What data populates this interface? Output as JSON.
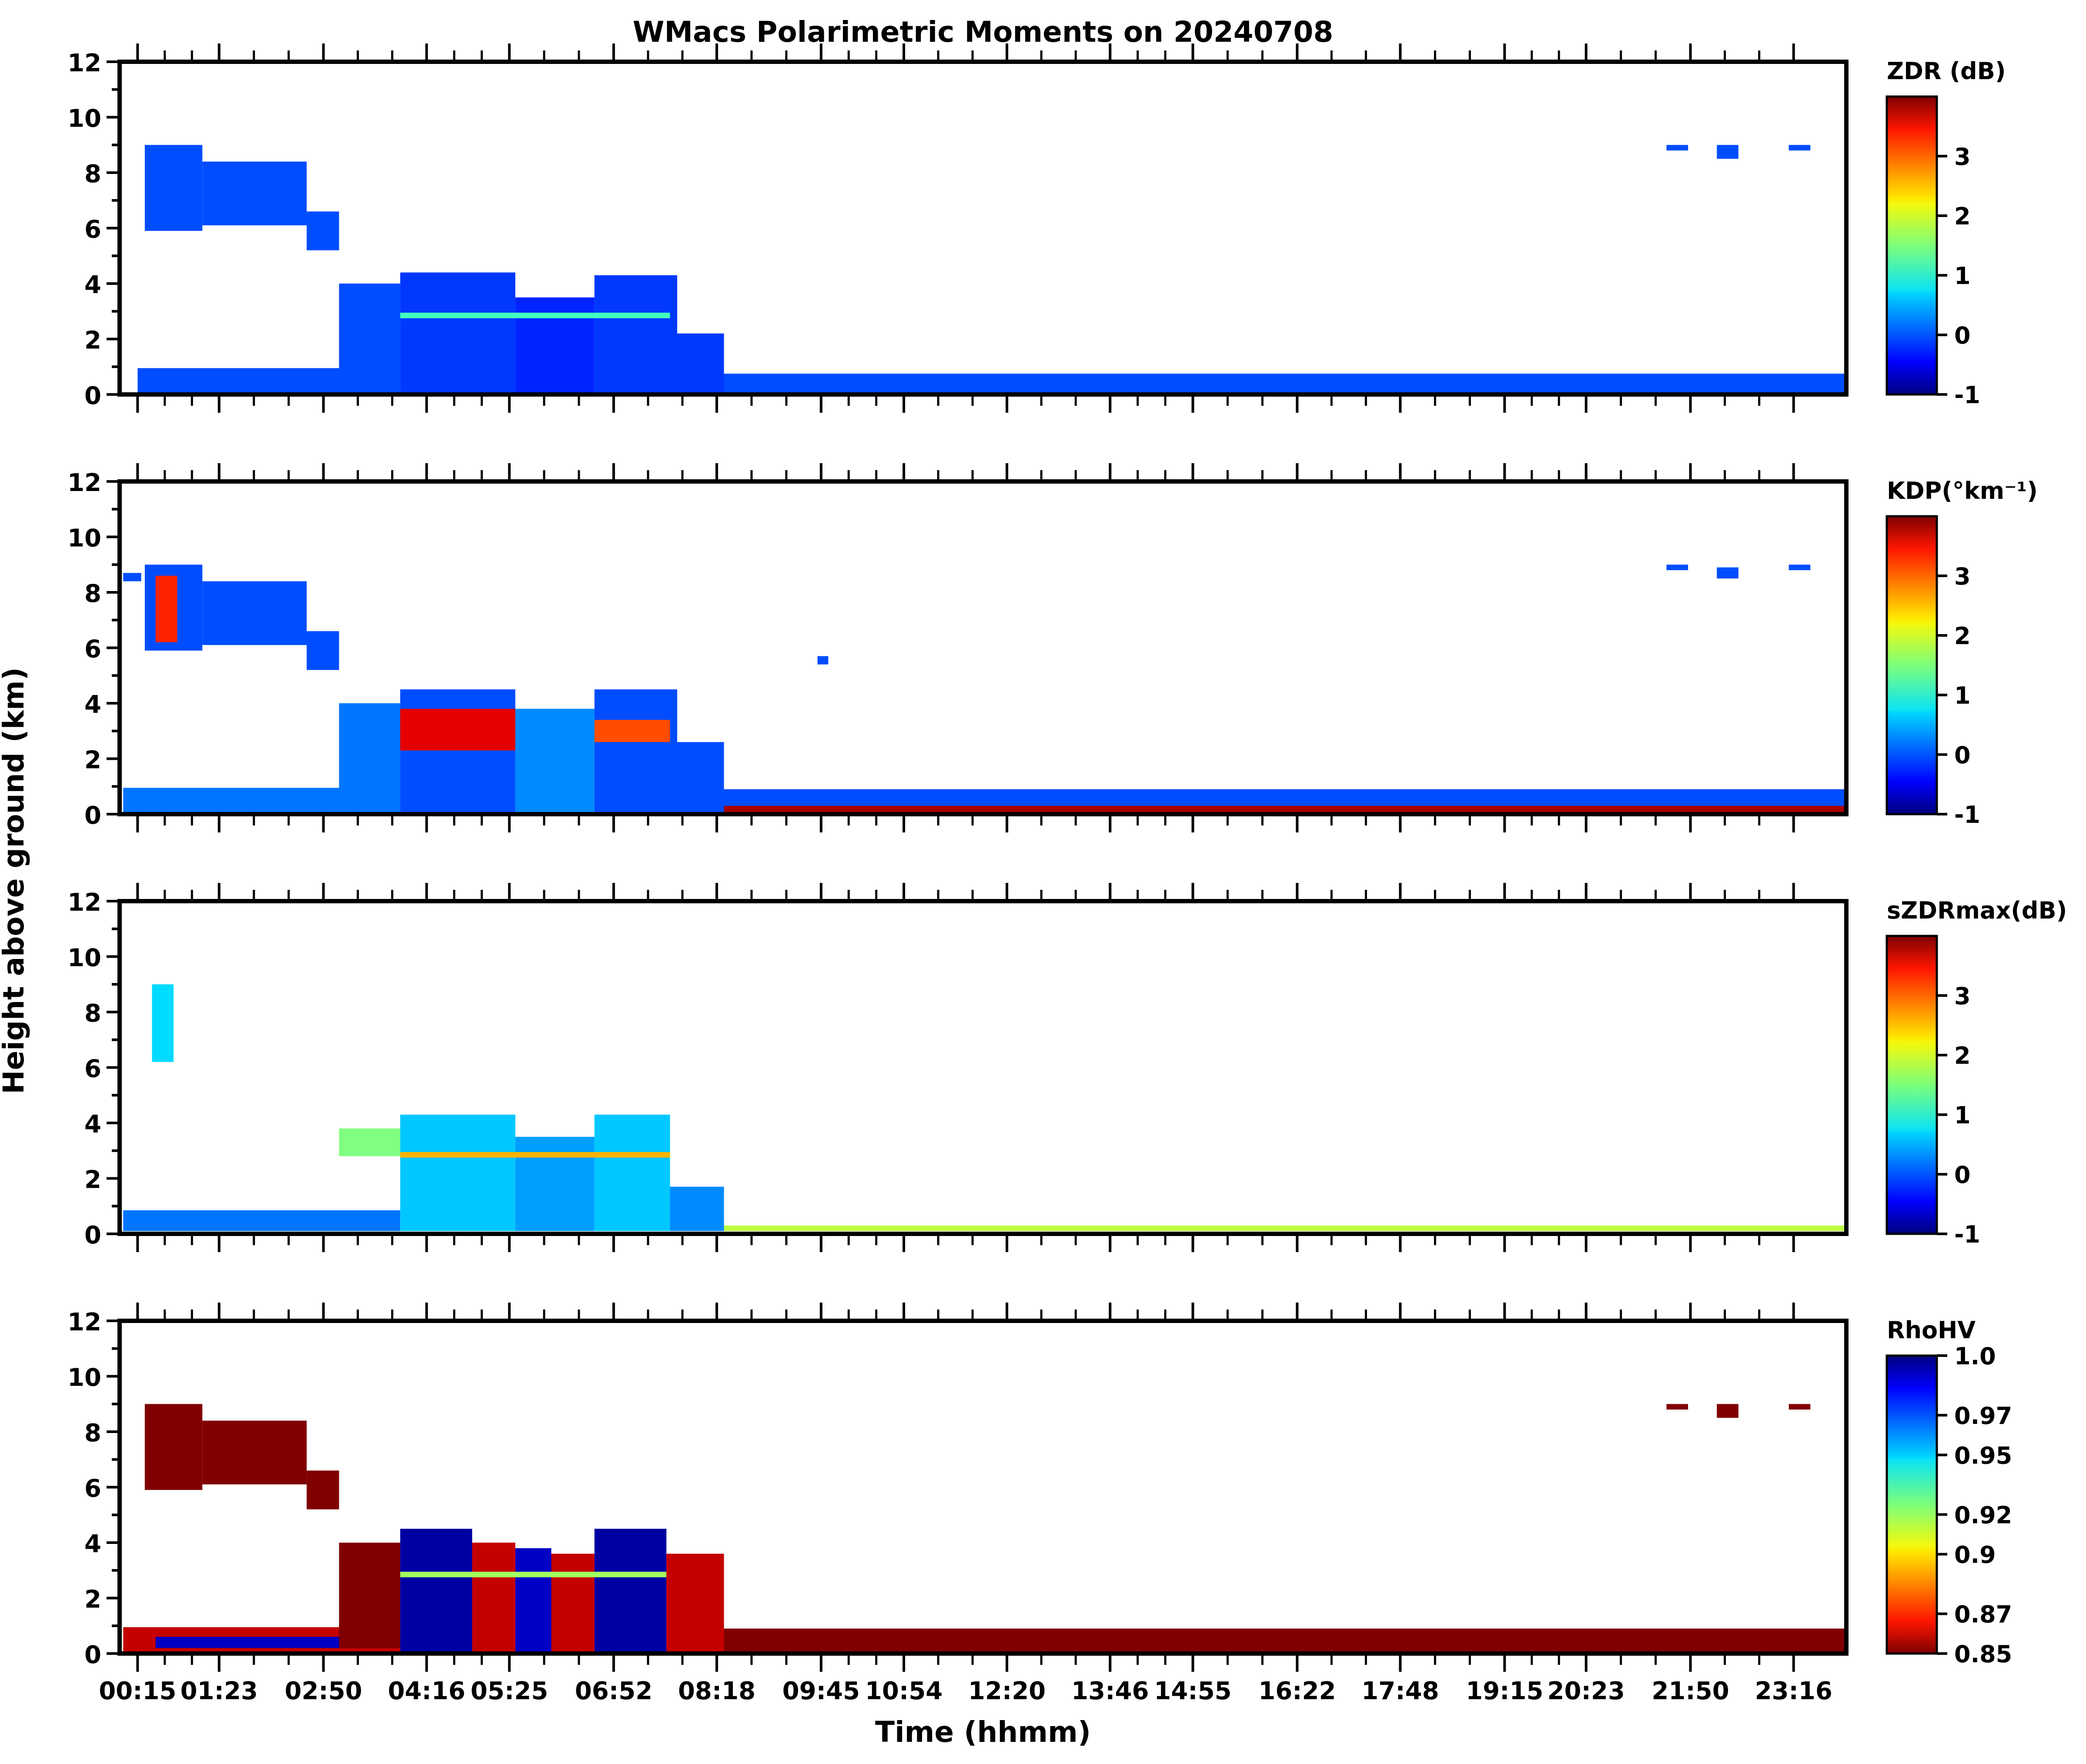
{
  "figure": {
    "title": "WMacs Polarimetric Moments on 20240708",
    "xlabel": "Time (hhmm)",
    "ylabel": "Height above ground (km)"
  },
  "chart_data": [
    {
      "type": "heatmap",
      "name": "ZDR panel",
      "colorbar_label": "ZDR (dB)",
      "colorbar_ticks": [
        "-1",
        "0",
        "1",
        "2",
        "3"
      ],
      "color_range": [
        -1,
        4
      ],
      "colormap": "jet",
      "x_ticks": [
        "00:15",
        "01:23",
        "02:50",
        "04:16",
        "05:25",
        "06:52",
        "08:18",
        "09:45",
        "10:54",
        "12:20",
        "13:46",
        "14:55",
        "16:22",
        "17:48",
        "19:15",
        "20:23",
        "21:50",
        "23:16"
      ],
      "y_ticks": [
        "0",
        "2",
        "4",
        "6",
        "8",
        "10",
        "12"
      ],
      "ylim": [
        0,
        12
      ],
      "regions": [
        {
          "t0": 0.35,
          "t1": 1.15,
          "h0": 5.9,
          "h1": 9.0,
          "value": 0.0
        },
        {
          "t0": 1.15,
          "t1": 2.6,
          "h0": 6.1,
          "h1": 8.4,
          "value": 0.0
        },
        {
          "t0": 2.6,
          "t1": 3.05,
          "h0": 5.2,
          "h1": 6.6,
          "value": 0.0
        },
        {
          "t0": 0.25,
          "t1": 3.9,
          "h0": 0.05,
          "h1": 0.95,
          "value": 0.0
        },
        {
          "t0": 3.05,
          "t1": 3.9,
          "h0": 0.1,
          "h1": 4.0,
          "value": 0.0
        },
        {
          "t0": 3.9,
          "t1": 5.5,
          "h0": 0.05,
          "h1": 4.4,
          "value": -0.1
        },
        {
          "t0": 5.5,
          "t1": 6.6,
          "h0": 0.05,
          "h1": 3.5,
          "value": -0.2
        },
        {
          "t0": 6.6,
          "t1": 7.75,
          "h0": 0.05,
          "h1": 4.3,
          "value": -0.1
        },
        {
          "t0": 7.75,
          "t1": 8.4,
          "h0": 0.05,
          "h1": 2.2,
          "value": -0.1
        },
        {
          "t0": 3.9,
          "t1": 7.65,
          "h0": 2.75,
          "h1": 2.95,
          "value": 1.2
        },
        {
          "t0": 8.4,
          "t1": 24.0,
          "h0": 0.05,
          "h1": 0.75,
          "value": 0.0
        },
        {
          "t0": 21.5,
          "t1": 21.8,
          "h0": 8.8,
          "h1": 9.0,
          "value": 0.0
        },
        {
          "t0": 22.2,
          "t1": 22.5,
          "h0": 8.5,
          "h1": 9.0,
          "value": 0.0
        },
        {
          "t0": 23.2,
          "t1": 23.5,
          "h0": 8.8,
          "h1": 9.0,
          "value": 0.0
        }
      ]
    },
    {
      "type": "heatmap",
      "name": "KDP panel",
      "colorbar_label": "KDP(°km⁻¹)",
      "colorbar_ticks": [
        "-1",
        "0",
        "1",
        "2",
        "3"
      ],
      "color_range": [
        -1,
        4
      ],
      "colormap": "jet",
      "x_ticks": [
        "00:15",
        "01:23",
        "02:50",
        "04:16",
        "05:25",
        "06:52",
        "08:18",
        "09:45",
        "10:54",
        "12:20",
        "13:46",
        "14:55",
        "16:22",
        "17:48",
        "19:15",
        "20:23",
        "21:50",
        "23:16"
      ],
      "y_ticks": [
        "0",
        "2",
        "4",
        "6",
        "8",
        "10",
        "12"
      ],
      "ylim": [
        0,
        12
      ],
      "regions": [
        {
          "t0": 0.05,
          "t1": 0.3,
          "h0": 8.4,
          "h1": 8.7,
          "value": 0.0
        },
        {
          "t0": 0.35,
          "t1": 1.15,
          "h0": 5.9,
          "h1": 9.0,
          "value": 0.0
        },
        {
          "t0": 0.5,
          "t1": 0.8,
          "h0": 6.2,
          "h1": 8.6,
          "value": 3.2
        },
        {
          "t0": 1.15,
          "t1": 2.6,
          "h0": 6.1,
          "h1": 8.4,
          "value": 0.0
        },
        {
          "t0": 2.6,
          "t1": 3.05,
          "h0": 5.2,
          "h1": 6.6,
          "value": 0.0
        },
        {
          "t0": 0.05,
          "t1": 3.9,
          "h0": 0.05,
          "h1": 0.95,
          "value": 0.2
        },
        {
          "t0": 3.05,
          "t1": 3.9,
          "h0": 0.2,
          "h1": 4.0,
          "value": 0.2
        },
        {
          "t0": 3.9,
          "t1": 5.5,
          "h0": 0.05,
          "h1": 4.5,
          "value": 0.0
        },
        {
          "t0": 3.9,
          "t1": 5.5,
          "h0": 2.3,
          "h1": 3.8,
          "value": 3.5
        },
        {
          "t0": 5.5,
          "t1": 6.6,
          "h0": 0.05,
          "h1": 3.8,
          "value": 0.3
        },
        {
          "t0": 6.6,
          "t1": 7.75,
          "h0": 0.05,
          "h1": 4.5,
          "value": 0.0
        },
        {
          "t0": 6.6,
          "t1": 7.65,
          "h0": 2.6,
          "h1": 3.4,
          "value": 3.0
        },
        {
          "t0": 7.75,
          "t1": 8.4,
          "h0": 0.05,
          "h1": 2.6,
          "value": 0.0
        },
        {
          "t0": 8.4,
          "t1": 24.0,
          "h0": 0.05,
          "h1": 0.9,
          "value": 0.0
        },
        {
          "t0": 8.4,
          "t1": 24.0,
          "h0": 0.05,
          "h1": 0.3,
          "value": 3.8
        },
        {
          "t0": 9.7,
          "t1": 9.85,
          "h0": 5.4,
          "h1": 5.7,
          "value": 0.0
        },
        {
          "t0": 21.5,
          "t1": 21.8,
          "h0": 8.8,
          "h1": 9.0,
          "value": 0.0
        },
        {
          "t0": 22.2,
          "t1": 22.5,
          "h0": 8.5,
          "h1": 8.9,
          "value": 0.0
        },
        {
          "t0": 23.2,
          "t1": 23.5,
          "h0": 8.8,
          "h1": 9.0,
          "value": 0.0
        }
      ]
    },
    {
      "type": "heatmap",
      "name": "sZDRmax panel",
      "colorbar_label": "sZDRmax(dB)",
      "colorbar_ticks": [
        "-1",
        "0",
        "1",
        "2",
        "3"
      ],
      "color_range": [
        -1,
        4
      ],
      "colormap": "jet",
      "x_ticks": [
        "00:15",
        "01:23",
        "02:50",
        "04:16",
        "05:25",
        "06:52",
        "08:18",
        "09:45",
        "10:54",
        "12:20",
        "13:46",
        "14:55",
        "16:22",
        "17:48",
        "19:15",
        "20:23",
        "21:50",
        "23:16"
      ],
      "y_ticks": [
        "0",
        "2",
        "4",
        "6",
        "8",
        "10",
        "12"
      ],
      "ylim": [
        0,
        12
      ],
      "regions": [
        {
          "t0": 0.45,
          "t1": 0.75,
          "h0": 6.2,
          "h1": 9.0,
          "value": 0.7
        },
        {
          "t0": 0.05,
          "t1": 3.9,
          "h0": 0.1,
          "h1": 0.85,
          "value": 0.2
        },
        {
          "t0": 3.05,
          "t1": 3.9,
          "h0": 2.8,
          "h1": 3.8,
          "value": 1.5
        },
        {
          "t0": 3.9,
          "t1": 5.5,
          "h0": 0.1,
          "h1": 4.3,
          "value": 0.6
        },
        {
          "t0": 5.5,
          "t1": 6.6,
          "h0": 0.1,
          "h1": 3.5,
          "value": 0.4
        },
        {
          "t0": 6.6,
          "t1": 7.65,
          "h0": 0.1,
          "h1": 4.3,
          "value": 0.6
        },
        {
          "t0": 3.9,
          "t1": 7.65,
          "h0": 2.75,
          "h1": 2.95,
          "value": 2.5
        },
        {
          "t0": 7.65,
          "t1": 8.4,
          "h0": 0.1,
          "h1": 1.7,
          "value": 0.3
        },
        {
          "t0": 8.4,
          "t1": 24.0,
          "h0": 0.1,
          "h1": 0.3,
          "value": 1.8
        }
      ]
    },
    {
      "type": "heatmap",
      "name": "RhoHV panel",
      "colorbar_label": "RhoHV",
      "colorbar_ticks": [
        "0.85",
        "0.87",
        "0.9",
        "0.92",
        "0.95",
        "0.97",
        "1.0"
      ],
      "color_range": [
        0.85,
        1.0
      ],
      "colormap": "jet_r",
      "x_ticks": [
        "00:15",
        "01:23",
        "02:50",
        "04:16",
        "05:25",
        "06:52",
        "08:18",
        "09:45",
        "10:54",
        "12:20",
        "13:46",
        "14:55",
        "16:22",
        "17:48",
        "19:15",
        "20:23",
        "21:50",
        "23:16"
      ],
      "y_ticks": [
        "0",
        "2",
        "4",
        "6",
        "8",
        "10",
        "12"
      ],
      "ylim": [
        0,
        12
      ],
      "regions": [
        {
          "t0": 0.35,
          "t1": 1.15,
          "h0": 5.9,
          "h1": 9.0,
          "value": 0.85
        },
        {
          "t0": 1.15,
          "t1": 2.6,
          "h0": 6.1,
          "h1": 8.4,
          "value": 0.85
        },
        {
          "t0": 2.6,
          "t1": 3.05,
          "h0": 5.2,
          "h1": 6.6,
          "value": 0.85
        },
        {
          "t0": 0.05,
          "t1": 3.9,
          "h0": 0.05,
          "h1": 0.95,
          "value": 0.86
        },
        {
          "t0": 0.5,
          "t1": 3.9,
          "h0": 0.2,
          "h1": 0.6,
          "value": 0.99
        },
        {
          "t0": 3.05,
          "t1": 3.9,
          "h0": 0.2,
          "h1": 4.0,
          "value": 0.85
        },
        {
          "t0": 3.9,
          "t1": 4.9,
          "h0": 0.05,
          "h1": 4.5,
          "value": 0.995
        },
        {
          "t0": 4.9,
          "t1": 5.5,
          "h0": 0.05,
          "h1": 4.0,
          "value": 0.86
        },
        {
          "t0": 5.5,
          "t1": 6.0,
          "h0": 0.05,
          "h1": 3.8,
          "value": 0.99
        },
        {
          "t0": 6.0,
          "t1": 6.6,
          "h0": 0.05,
          "h1": 3.6,
          "value": 0.86
        },
        {
          "t0": 6.6,
          "t1": 7.6,
          "h0": 0.05,
          "h1": 4.5,
          "value": 0.995
        },
        {
          "t0": 3.9,
          "t1": 7.6,
          "h0": 2.75,
          "h1": 2.95,
          "value": 0.92
        },
        {
          "t0": 7.6,
          "t1": 8.4,
          "h0": 0.05,
          "h1": 3.6,
          "value": 0.86
        },
        {
          "t0": 8.4,
          "t1": 24.0,
          "h0": 0.05,
          "h1": 0.9,
          "value": 0.85
        },
        {
          "t0": 21.5,
          "t1": 21.8,
          "h0": 8.8,
          "h1": 9.0,
          "value": 0.85
        },
        {
          "t0": 22.2,
          "t1": 22.5,
          "h0": 8.5,
          "h1": 9.0,
          "value": 0.85
        },
        {
          "t0": 23.2,
          "t1": 23.5,
          "h0": 8.8,
          "h1": 9.0,
          "value": 0.85
        }
      ]
    }
  ]
}
